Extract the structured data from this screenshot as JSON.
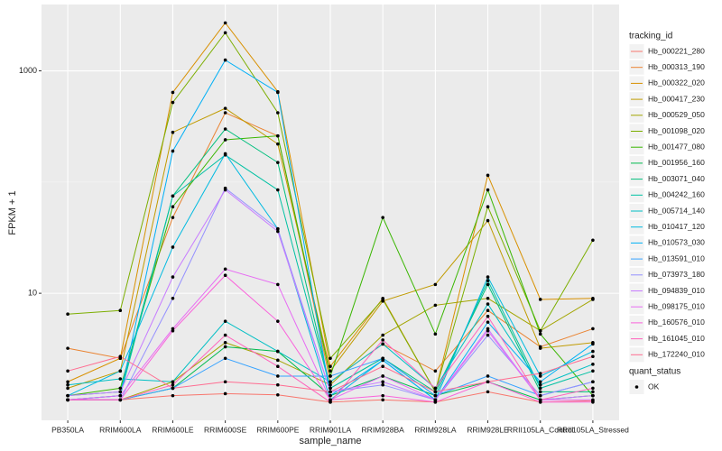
{
  "chart_data": {
    "type": "line",
    "x_label": "sample_name",
    "y_label": "FPKM + 1",
    "log_scale": true,
    "grid": true,
    "ylim": [
      0.72,
      3950
    ],
    "yticks": [
      10,
      1000
    ],
    "categories": [
      "PB350LA",
      "RRIM600LA",
      "RRIM600LE",
      "RRIM600SE",
      "RRIM600PE",
      "RRIM901LA",
      "RRIM928BA",
      "RRIM928LA",
      "RRIM928LE",
      "RRII105LA_Control",
      "RRII105LA_Stressed"
    ],
    "legend_title": "tracking_id",
    "legend_position": "right",
    "point_legend": {
      "title": "quant_status",
      "label": "OK"
    },
    "series": [
      {
        "name": "Hb_000221_280",
        "color": "#F8766D",
        "values": [
          1.1,
          1.1,
          1.2,
          1.25,
          1.22,
          1.05,
          1.1,
          1.05,
          1.3,
          1.05,
          1.08
        ]
      },
      {
        "name": "Hb_000313_190",
        "color": "#EA8331",
        "values": [
          3.2,
          2.6,
          48,
          420,
          260,
          1.6,
          3.5,
          2.0,
          7.0,
          3.3,
          4.8
        ]
      },
      {
        "name": "Hb_000322_020",
        "color": "#D89000",
        "values": [
          1.6,
          2.6,
          640,
          2700,
          650,
          2.2,
          9,
          1.3,
          115,
          8.8,
          9
        ]
      },
      {
        "name": "Hb_000417_230",
        "color": "#C09B00",
        "values": [
          1.4,
          2.0,
          280,
          460,
          220,
          2.0,
          8.5,
          12,
          45,
          3.2,
          3.6
        ]
      },
      {
        "name": "Hb_000529_050",
        "color": "#A3A500",
        "values": [
          1.1,
          1.1,
          1.6,
          3.6,
          2.5,
          1.5,
          4.2,
          7.8,
          9,
          4.6,
          8.8
        ]
      },
      {
        "name": "Hb_001098_020",
        "color": "#7CAE00",
        "values": [
          6.5,
          7,
          520,
          2200,
          420,
          2.6,
          8.8,
          1.3,
          60,
          4.6,
          30
        ]
      },
      {
        "name": "Hb_001477_080",
        "color": "#39B600",
        "values": [
          1.2,
          1.4,
          60,
          240,
          260,
          1.8,
          48,
          4.3,
          85,
          4.3,
          1.2
        ]
      },
      {
        "name": "Hb_001956_160",
        "color": "#00BB4E",
        "values": [
          1.1,
          1.1,
          1.4,
          3.3,
          3.0,
          1.2,
          1.8,
          1.2,
          1.6,
          1.1,
          1.2
        ]
      },
      {
        "name": "Hb_003071_040",
        "color": "#00BF7D",
        "values": [
          1.2,
          1.3,
          75,
          300,
          150,
          1.4,
          2.6,
          1.3,
          12,
          1.3,
          1.3
        ]
      },
      {
        "name": "Hb_004242_160",
        "color": "#00C1A3",
        "values": [
          1.1,
          1.2,
          75,
          175,
          85,
          1.4,
          2.6,
          1.2,
          13,
          1.4,
          2.0
        ]
      },
      {
        "name": "Hb_005714_140",
        "color": "#00BFC4",
        "values": [
          1.5,
          1.7,
          1.6,
          5.6,
          3.0,
          1.6,
          3.5,
          1.4,
          8,
          1.5,
          2.3
        ]
      },
      {
        "name": "Hb_010417_120",
        "color": "#00BAE0",
        "values": [
          1.2,
          2.0,
          26,
          180,
          38,
          1.1,
          2.5,
          1.1,
          14,
          1.8,
          3.0
        ]
      },
      {
        "name": "Hb_010573_030",
        "color": "#00B0F6",
        "values": [
          1.1,
          1.2,
          190,
          1250,
          640,
          1.2,
          2.5,
          1.1,
          5.5,
          1.6,
          3.5
        ]
      },
      {
        "name": "Hb_013591_010",
        "color": "#35A2FF",
        "values": [
          1.1,
          1.1,
          1.4,
          2.6,
          1.8,
          1.8,
          2.6,
          1.2,
          1.8,
          1.2,
          1.6
        ]
      },
      {
        "name": "Hb_073973_180",
        "color": "#9590FF",
        "values": [
          1.1,
          1.1,
          9,
          88,
          38,
          1.3,
          1.5,
          1.1,
          4.2,
          1.2,
          1.6
        ]
      },
      {
        "name": "Hb_094839_010",
        "color": "#C77CFF",
        "values": [
          1.2,
          1.3,
          14,
          85,
          36,
          1.3,
          1.6,
          1.1,
          4.8,
          1.1,
          1.2
        ]
      },
      {
        "name": "Hb_098175_010",
        "color": "#E76BF3",
        "values": [
          1.1,
          1.2,
          4.8,
          16.5,
          12,
          1.1,
          1.8,
          1.1,
          4.6,
          1.1,
          1.1
        ]
      },
      {
        "name": "Hb_160576_010",
        "color": "#FA62DB",
        "values": [
          1.1,
          1.1,
          4.6,
          14.5,
          5.6,
          1.1,
          1.2,
          1.05,
          1.6,
          1.05,
          1.05
        ]
      },
      {
        "name": "Hb_161045_010",
        "color": "#FF62BC",
        "values": [
          1.1,
          1.1,
          1.5,
          4.2,
          2.2,
          1.05,
          3.8,
          1.4,
          6.2,
          1.1,
          1.4
        ]
      },
      {
        "name": "Hb_172240_010",
        "color": "#FF6C91",
        "values": [
          2.0,
          2.7,
          1.4,
          1.6,
          1.5,
          1.3,
          2.2,
          1.3,
          1.6,
          1.9,
          2.7
        ]
      }
    ]
  }
}
